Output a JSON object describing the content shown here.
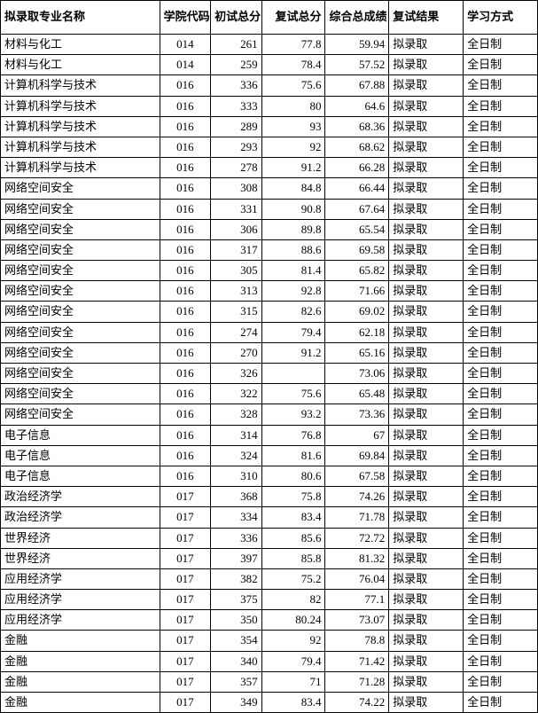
{
  "headers": {
    "major": "拟录取专业名称",
    "code": "学院代码",
    "score1": "初试总分",
    "score2": "复试总分",
    "score3": "综合总成绩",
    "result": "复试结果",
    "mode": "学习方式"
  },
  "rows": [
    {
      "major": "材料与化工",
      "code": "014",
      "s1": "261",
      "s2": "77.8",
      "s3": "59.94",
      "result": "拟录取",
      "mode": "全日制"
    },
    {
      "major": "材料与化工",
      "code": "014",
      "s1": "259",
      "s2": "78.4",
      "s3": "57.52",
      "result": "拟录取",
      "mode": "全日制"
    },
    {
      "major": "计算机科学与技术",
      "code": "016",
      "s1": "336",
      "s2": "75.6",
      "s3": "67.88",
      "result": "拟录取",
      "mode": "全日制"
    },
    {
      "major": "计算机科学与技术",
      "code": "016",
      "s1": "333",
      "s2": "80",
      "s3": "64.6",
      "result": "拟录取",
      "mode": "全日制"
    },
    {
      "major": "计算机科学与技术",
      "code": "016",
      "s1": "289",
      "s2": "93",
      "s3": "68.36",
      "result": "拟录取",
      "mode": "全日制"
    },
    {
      "major": "计算机科学与技术",
      "code": "016",
      "s1": "293",
      "s2": "92",
      "s3": "68.62",
      "result": "拟录取",
      "mode": "全日制"
    },
    {
      "major": "计算机科学与技术",
      "code": "016",
      "s1": "278",
      "s2": "91.2",
      "s3": "66.28",
      "result": "拟录取",
      "mode": "全日制"
    },
    {
      "major": "网络空间安全",
      "code": "016",
      "s1": "308",
      "s2": "84.8",
      "s3": "66.44",
      "result": "拟录取",
      "mode": "全日制"
    },
    {
      "major": "网络空间安全",
      "code": "016",
      "s1": "331",
      "s2": "90.8",
      "s3": "67.64",
      "result": "拟录取",
      "mode": "全日制"
    },
    {
      "major": "网络空间安全",
      "code": "016",
      "s1": "306",
      "s2": "89.8",
      "s3": "65.54",
      "result": "拟录取",
      "mode": "全日制"
    },
    {
      "major": "网络空间安全",
      "code": "016",
      "s1": "317",
      "s2": "88.6",
      "s3": "69.58",
      "result": "拟录取",
      "mode": "全日制"
    },
    {
      "major": "网络空间安全",
      "code": "016",
      "s1": "305",
      "s2": "81.4",
      "s3": "65.82",
      "result": "拟录取",
      "mode": "全日制"
    },
    {
      "major": "网络空间安全",
      "code": "016",
      "s1": "313",
      "s2": "92.8",
      "s3": "71.66",
      "result": "拟录取",
      "mode": "全日制"
    },
    {
      "major": "网络空间安全",
      "code": "016",
      "s1": "315",
      "s2": "82.6",
      "s3": "69.02",
      "result": "拟录取",
      "mode": "全日制"
    },
    {
      "major": "网络空间安全",
      "code": "016",
      "s1": "274",
      "s2": "79.4",
      "s3": "62.18",
      "result": "拟录取",
      "mode": "全日制"
    },
    {
      "major": "网络空间安全",
      "code": "016",
      "s1": "270",
      "s2": "91.2",
      "s3": "65.16",
      "result": "拟录取",
      "mode": "全日制"
    },
    {
      "major": "网络空间安全",
      "code": "016",
      "s1": "326",
      "s2": "",
      "s3": "73.06",
      "result": "拟录取",
      "mode": "全日制"
    },
    {
      "major": "网络空间安全",
      "code": "016",
      "s1": "322",
      "s2": "75.6",
      "s3": "65.48",
      "result": "拟录取",
      "mode": "全日制"
    },
    {
      "major": "网络空间安全",
      "code": "016",
      "s1": "328",
      "s2": "93.2",
      "s3": "73.36",
      "result": "拟录取",
      "mode": "全日制"
    },
    {
      "major": "电子信息",
      "code": "016",
      "s1": "314",
      "s2": "76.8",
      "s3": "67",
      "result": "拟录取",
      "mode": "全日制"
    },
    {
      "major": "电子信息",
      "code": "016",
      "s1": "324",
      "s2": "81.6",
      "s3": "69.84",
      "result": "拟录取",
      "mode": "全日制"
    },
    {
      "major": "电子信息",
      "code": "016",
      "s1": "310",
      "s2": "80.6",
      "s3": "67.58",
      "result": "拟录取",
      "mode": "全日制"
    },
    {
      "major": "政治经济学",
      "code": "017",
      "s1": "368",
      "s2": "75.8",
      "s3": "74.26",
      "result": "拟录取",
      "mode": "全日制"
    },
    {
      "major": "政治经济学",
      "code": "017",
      "s1": "334",
      "s2": "83.4",
      "s3": "71.78",
      "result": "拟录取",
      "mode": "全日制"
    },
    {
      "major": "世界经济",
      "code": "017",
      "s1": "336",
      "s2": "85.6",
      "s3": "72.72",
      "result": "拟录取",
      "mode": "全日制"
    },
    {
      "major": "世界经济",
      "code": "017",
      "s1": "397",
      "s2": "85.8",
      "s3": "81.32",
      "result": "拟录取",
      "mode": "全日制"
    },
    {
      "major": "应用经济学",
      "code": "017",
      "s1": "382",
      "s2": "75.2",
      "s3": "76.04",
      "result": "拟录取",
      "mode": "全日制"
    },
    {
      "major": "应用经济学",
      "code": "017",
      "s1": "375",
      "s2": "82",
      "s3": "77.1",
      "result": "拟录取",
      "mode": "全日制"
    },
    {
      "major": "应用经济学",
      "code": "017",
      "s1": "350",
      "s2": "80.24",
      "s3": "73.07",
      "result": "拟录取",
      "mode": "全日制"
    },
    {
      "major": "金融",
      "code": "017",
      "s1": "354",
      "s2": "92",
      "s3": "78.8",
      "result": "拟录取",
      "mode": "全日制"
    },
    {
      "major": "金融",
      "code": "017",
      "s1": "340",
      "s2": "79.4",
      "s3": "71.42",
      "result": "拟录取",
      "mode": "全日制"
    },
    {
      "major": "金融",
      "code": "017",
      "s1": "357",
      "s2": "71",
      "s3": "71.28",
      "result": "拟录取",
      "mode": "全日制"
    },
    {
      "major": "金融",
      "code": "017",
      "s1": "349",
      "s2": "83.4",
      "s3": "74.22",
      "result": "拟录取",
      "mode": "全日制"
    }
  ]
}
